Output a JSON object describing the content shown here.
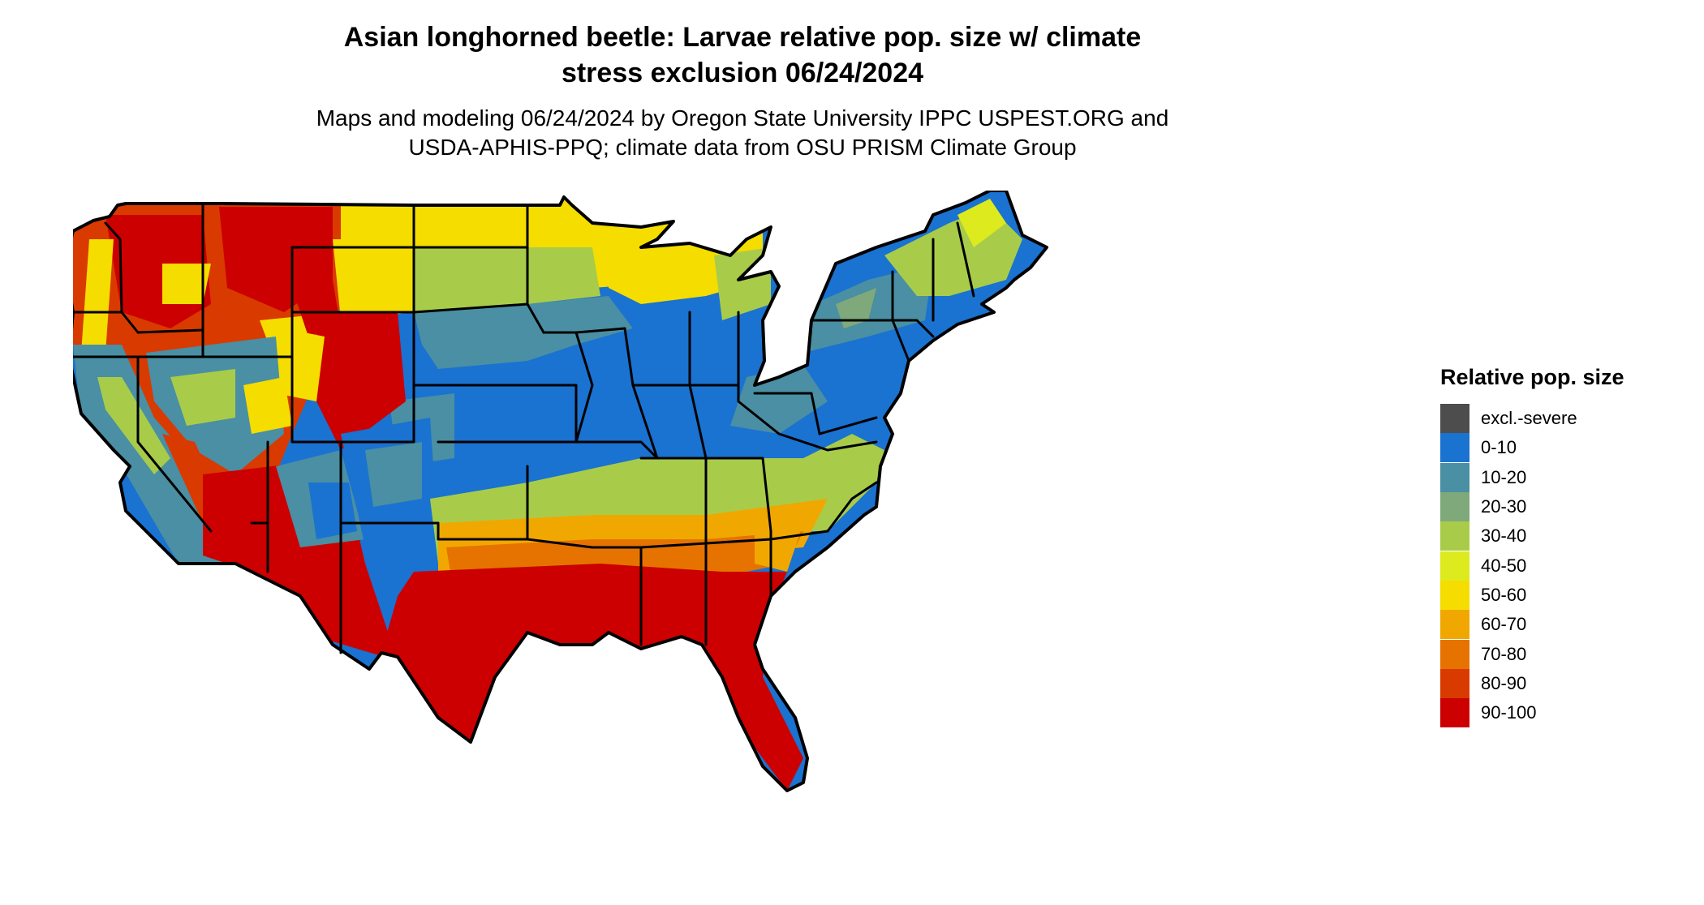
{
  "title": {
    "line1": "Asian longhorned beetle: Larvae relative pop. size w/ climate",
    "line2": "stress exclusion 06/24/2024"
  },
  "subtitle": {
    "line1": "Maps and modeling 06/24/2024 by Oregon State University IPPC USPEST.ORG and",
    "line2": "USDA-APHIS-PPQ; climate data from OSU PRISM Climate Group"
  },
  "legend": {
    "title": "Relative pop. size",
    "items": [
      {
        "label": "excl.-severe",
        "color": "#4d4d4d"
      },
      {
        "label": "0-10",
        "color": "#1a72d1"
      },
      {
        "label": "10-20",
        "color": "#4a8fa3"
      },
      {
        "label": "20-30",
        "color": "#7fa97a"
      },
      {
        "label": "30-40",
        "color": "#a8cc4a"
      },
      {
        "label": "40-50",
        "color": "#dcea1e"
      },
      {
        "label": "50-60",
        "color": "#f5dd00"
      },
      {
        "label": "60-70",
        "color": "#f0a800"
      },
      {
        "label": "70-80",
        "color": "#e67300"
      },
      {
        "label": "80-90",
        "color": "#d93a00"
      },
      {
        "label": "90-100",
        "color": "#cc0000"
      }
    ]
  },
  "map": {
    "region": "contiguous-united-states",
    "border_color": "#000000",
    "regional_classes": [
      {
        "region": "pacific-northwest",
        "class": "80-90"
      },
      {
        "region": "northern-rockies",
        "class": "90-100"
      },
      {
        "region": "northern-plains",
        "class": "50-60"
      },
      {
        "region": "central-plains",
        "class": "10-20"
      },
      {
        "region": "midwest",
        "class": "0-10"
      },
      {
        "region": "northeast",
        "class": "0-10"
      },
      {
        "region": "new-england",
        "class": "30-40"
      },
      {
        "region": "great-basin",
        "class": "0-10"
      },
      {
        "region": "california",
        "class": "10-20"
      },
      {
        "region": "southwest",
        "class": "90-100"
      },
      {
        "region": "gulf-coast-and-southeast",
        "class": "90-100"
      },
      {
        "region": "mid-south",
        "class": "60-70"
      }
    ]
  }
}
